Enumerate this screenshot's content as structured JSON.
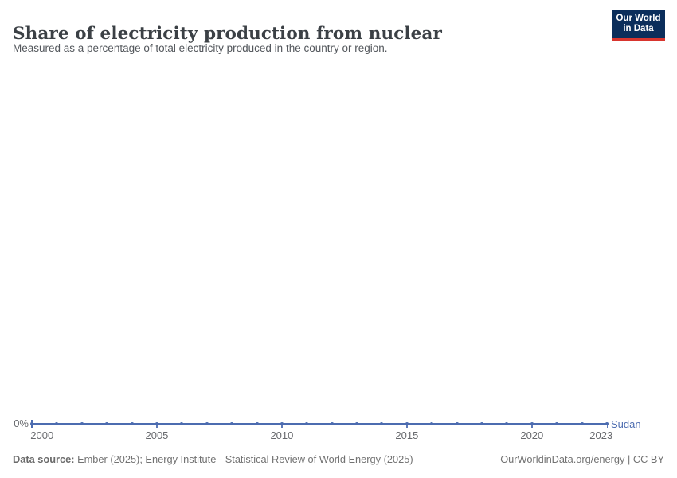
{
  "header": {
    "title": "Share of electricity production from nuclear",
    "subtitle": "Measured as a percentage of total electricity produced in the country or region.",
    "logo": {
      "line1": "Our World",
      "line2": "in Data"
    }
  },
  "chart_data": {
    "type": "line",
    "title": "Share of electricity production from nuclear",
    "subtitle": "Measured as a percentage of total electricity produced in the country or region.",
    "series": [
      {
        "name": "Sudan",
        "color": "#4c6cb0",
        "x": [
          2000,
          2001,
          2002,
          2003,
          2004,
          2005,
          2006,
          2007,
          2008,
          2009,
          2010,
          2011,
          2012,
          2013,
          2014,
          2015,
          2016,
          2017,
          2018,
          2019,
          2020,
          2021,
          2022,
          2023
        ],
        "values": [
          0,
          0,
          0,
          0,
          0,
          0,
          0,
          0,
          0,
          0,
          0,
          0,
          0,
          0,
          0,
          0,
          0,
          0,
          0,
          0,
          0,
          0,
          0,
          0
        ]
      }
    ],
    "x_range": [
      2000,
      2023
    ],
    "x_ticks": [
      2000,
      2005,
      2010,
      2015,
      2020,
      2023
    ],
    "x_tick_labels": [
      "2000",
      "2005",
      "2010",
      "2015",
      "2020",
      "2023"
    ],
    "y_ticks": [
      "0%"
    ],
    "y_axis_zero_label": "0%",
    "ylim": [
      0,
      0
    ],
    "grid": false,
    "legend_position": "end-of-line",
    "unit": "%"
  },
  "footer": {
    "datasource_label": "Data source:",
    "datasource_text": " Ember (2025); Energy Institute - Statistical Review of World Energy (2025)",
    "credit": "OurWorldinData.org/energy | CC BY"
  },
  "colors": {
    "line": "#4c6cb0",
    "logo_navy": "#0b2e5b",
    "logo_red": "#d8352e",
    "title_text": "#3b4045",
    "muted_text": "#67696d"
  }
}
